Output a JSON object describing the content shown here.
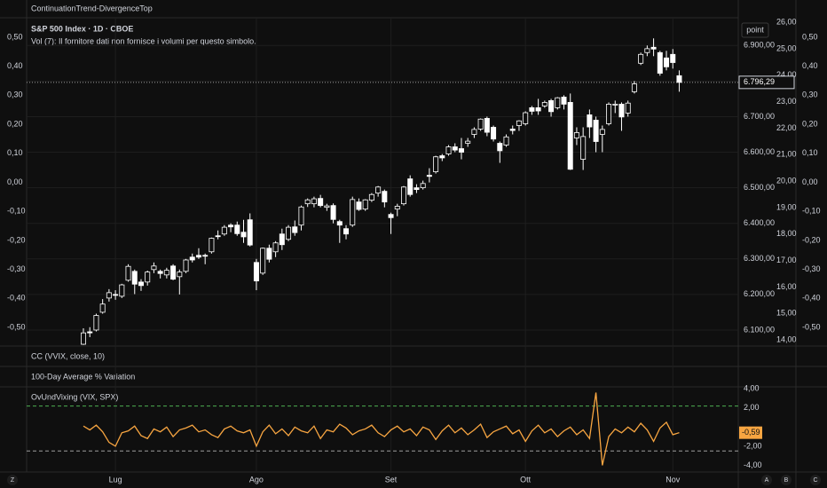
{
  "header": {
    "indicator_title": "ContinuationTrend-DivergenceTop"
  },
  "panes": [
    "CC (VVIX, close, 10)",
    "100-Day Average % Variation"
  ],
  "toolbar": {
    "left": "Z",
    "right": [
      "A",
      "B",
      "C"
    ]
  },
  "chart_data": [
    {
      "type": "candlestick",
      "title": "S&P 500 Index · 1D · CBOE",
      "note": "Vol (7): Il fornitore dati non fornisce i volumi per questo simbolo.",
      "scale_mode": "point",
      "up_color": "#0f0f0f",
      "down_color": "#ffffff",
      "wick_color": "#ffffff",
      "grid": true,
      "candles": [
        [
          6060,
          6105,
          6058,
          6092
        ],
        [
          6095,
          6108,
          6080,
          6092
        ],
        [
          6100,
          6146,
          6096,
          6141
        ],
        [
          6150,
          6187,
          6146,
          6173
        ],
        [
          6190,
          6215,
          6180,
          6205
        ],
        [
          6200,
          6212,
          6185,
          6198
        ],
        [
          6195,
          6230,
          6190,
          6227
        ],
        [
          6240,
          6285,
          6236,
          6279
        ],
        [
          6265,
          6270,
          6201,
          6229
        ],
        [
          6235,
          6243,
          6210,
          6225
        ],
        [
          6235,
          6267,
          6225,
          6263
        ],
        [
          6270,
          6290,
          6260,
          6280
        ],
        [
          6265,
          6270,
          6245,
          6259
        ],
        [
          6255,
          6275,
          6245,
          6268
        ],
        [
          6280,
          6285,
          6240,
          6243
        ],
        [
          6250,
          6270,
          6200,
          6263
        ],
        [
          6265,
          6300,
          6260,
          6297
        ],
        [
          6305,
          6315,
          6290,
          6297
        ],
        [
          6310,
          6330,
          6300,
          6305
        ],
        [
          6310,
          6315,
          6285,
          6309
        ],
        [
          6320,
          6360,
          6315,
          6358
        ],
        [
          6365,
          6380,
          6355,
          6363
        ],
        [
          6370,
          6395,
          6365,
          6389
        ],
        [
          6395,
          6400,
          6375,
          6390
        ],
        [
          6395,
          6405,
          6365,
          6371
        ],
        [
          6375,
          6410,
          6345,
          6362
        ],
        [
          6410,
          6428,
          6335,
          6339
        ],
        [
          6290,
          6300,
          6212,
          6238
        ],
        [
          6260,
          6332,
          6255,
          6330
        ],
        [
          6330,
          6340,
          6290,
          6299
        ],
        [
          6320,
          6350,
          6305,
          6345
        ],
        [
          6370,
          6385,
          6325,
          6340
        ],
        [
          6355,
          6395,
          6350,
          6389
        ],
        [
          6390,
          6408,
          6365,
          6374
        ],
        [
          6395,
          6450,
          6380,
          6446
        ],
        [
          6455,
          6470,
          6446,
          6466
        ],
        [
          6455,
          6475,
          6445,
          6469
        ],
        [
          6470,
          6480,
          6445,
          6450
        ],
        [
          6445,
          6455,
          6435,
          6449
        ],
        [
          6450,
          6456,
          6400,
          6411
        ],
        [
          6405,
          6410,
          6345,
          6395
        ],
        [
          6385,
          6395,
          6355,
          6370
        ],
        [
          6395,
          6475,
          6390,
          6467
        ],
        [
          6460,
          6470,
          6435,
          6439
        ],
        [
          6440,
          6468,
          6435,
          6466
        ],
        [
          6465,
          6485,
          6460,
          6481
        ],
        [
          6485,
          6505,
          6475,
          6502
        ],
        [
          6490,
          6495,
          6445,
          6460
        ],
        [
          6425,
          6430,
          6370,
          6416
        ],
        [
          6440,
          6455,
          6420,
          6448
        ],
        [
          6455,
          6505,
          6450,
          6502
        ],
        [
          6525,
          6535,
          6475,
          6481
        ],
        [
          6500,
          6510,
          6485,
          6495
        ],
        [
          6500,
          6520,
          6495,
          6512
        ],
        [
          6535,
          6555,
          6515,
          6532
        ],
        [
          6545,
          6590,
          6540,
          6587
        ],
        [
          6590,
          6595,
          6575,
          6584
        ],
        [
          6595,
          6620,
          6590,
          6615
        ],
        [
          6615,
          6625,
          6600,
          6606
        ],
        [
          6610,
          6640,
          6580,
          6600
        ],
        [
          6625,
          6640,
          6615,
          6631
        ],
        [
          6650,
          6670,
          6640,
          6664
        ],
        [
          6665,
          6695,
          6660,
          6693
        ],
        [
          6695,
          6700,
          6645,
          6656
        ],
        [
          6670,
          6675,
          6630,
          6637
        ],
        [
          6625,
          6630,
          6570,
          6604
        ],
        [
          6620,
          6650,
          6615,
          6643
        ],
        [
          6665,
          6675,
          6650,
          6661
        ],
        [
          6675,
          6690,
          6660,
          6688
        ],
        [
          6680,
          6715,
          6675,
          6711
        ],
        [
          6725,
          6730,
          6705,
          6715
        ],
        [
          6725,
          6750,
          6705,
          6716
        ],
        [
          6730,
          6745,
          6725,
          6740
        ],
        [
          6745,
          6750,
          6700,
          6714
        ],
        [
          6725,
          6755,
          6720,
          6753
        ],
        [
          6755,
          6760,
          6720,
          6735
        ],
        [
          6740,
          6765,
          6550,
          6552
        ],
        [
          6640,
          6670,
          6620,
          6655
        ],
        [
          6580,
          6670,
          6550,
          6644
        ],
        [
          6705,
          6720,
          6640,
          6671
        ],
        [
          6690,
          6700,
          6600,
          6630
        ],
        [
          6650,
          6675,
          6600,
          6664
        ],
        [
          6680,
          6740,
          6675,
          6735
        ],
        [
          6735,
          6745,
          6710,
          6735
        ],
        [
          6735,
          6740,
          6660,
          6699
        ],
        [
          6710,
          6745,
          6700,
          6738
        ],
        [
          6770,
          6800,
          6765,
          6792
        ],
        [
          6850,
          6880,
          6845,
          6875
        ],
        [
          6880,
          6900,
          6870,
          6891
        ],
        [
          6895,
          6920,
          6870,
          6890
        ],
        [
          6880,
          6885,
          6815,
          6822
        ],
        [
          6865,
          6885,
          6830,
          6840
        ],
        [
          6875,
          6890,
          6835,
          6852
        ],
        [
          6815,
          6830,
          6770,
          6796.29
        ]
      ],
      "last_price": {
        "value": 6796.29,
        "label": "6.796,29"
      },
      "xticks": [
        {
          "value": 5,
          "label": "Lug"
        },
        {
          "value": 27,
          "label": "Ago"
        },
        {
          "value": 48,
          "label": "Set"
        },
        {
          "value": 69,
          "label": "Ott"
        },
        {
          "value": 92,
          "label": "Nov"
        }
      ],
      "ylim": [
        6055,
        6978
      ],
      "yticks": [
        {
          "value": 6100,
          "label": "6.100,00"
        },
        {
          "value": 6200,
          "label": "6.200,00"
        },
        {
          "value": 6300,
          "label": "6.300,00"
        },
        {
          "value": 6400,
          "label": "6.400,00"
        },
        {
          "value": 6500,
          "label": "6.500,00"
        },
        {
          "value": 6600,
          "label": "6.600,00"
        },
        {
          "value": 6700,
          "label": "6.700,00"
        },
        {
          "value": 6800,
          "label": "6.800,00"
        },
        {
          "value": 6900,
          "label": "6.900,00"
        }
      ],
      "y2lim": [
        13.77,
        26.17
      ],
      "y2ticks": [
        {
          "value": 14,
          "label": "14,00"
        },
        {
          "value": 15,
          "label": "15,00"
        },
        {
          "value": 16,
          "label": "16,00"
        },
        {
          "value": 17,
          "label": "17,00"
        },
        {
          "value": 18,
          "label": "18,00"
        },
        {
          "value": 19,
          "label": "19,00"
        },
        {
          "value": 20,
          "label": "20,00"
        },
        {
          "value": 21,
          "label": "21,00"
        },
        {
          "value": 22,
          "label": "22,00"
        },
        {
          "value": 23,
          "label": "23,00"
        },
        {
          "value": 24,
          "label": "24,00"
        },
        {
          "value": 25,
          "label": "25,00"
        },
        {
          "value": 26,
          "label": "26,00"
        }
      ],
      "left_ylim": [
        -0.564,
        0.567
      ],
      "left_yticks": [
        {
          "value": 0.5,
          "label": "0,50"
        },
        {
          "value": 0.4,
          "label": "0,40"
        },
        {
          "value": 0.3,
          "label": "0,30"
        },
        {
          "value": 0.2,
          "label": "0,20"
        },
        {
          "value": 0.1,
          "label": "0,10"
        },
        {
          "value": 0,
          "label": "0,00"
        },
        {
          "value": -0.1,
          "label": "-0,10"
        },
        {
          "value": -0.2,
          "label": "-0,20"
        },
        {
          "value": -0.3,
          "label": "-0,30"
        },
        {
          "value": -0.4,
          "label": "-0,40"
        },
        {
          "value": -0.5,
          "label": "-0,50"
        }
      ]
    },
    {
      "type": "line",
      "title": "OvUndVixing (VIX, SPX)",
      "color": "#f7a541",
      "values": [
        0.1,
        -0.3,
        0.2,
        -0.5,
        -1.6,
        -2.0,
        -0.6,
        -0.4,
        0.1,
        -0.9,
        -1.2,
        -0.2,
        -0.5,
        0.0,
        -1.0,
        -0.3,
        -0.1,
        0.2,
        -0.5,
        -0.3,
        -0.8,
        -1.1,
        -0.2,
        0.1,
        -0.4,
        -0.6,
        -0.3,
        -2.0,
        -0.5,
        0.2,
        -0.7,
        -0.2,
        -0.9,
        0.0,
        -0.4,
        -0.6,
        0.1,
        -1.2,
        -0.3,
        -0.5,
        0.3,
        -0.1,
        -0.8,
        -0.4,
        -0.2,
        0.2,
        -0.6,
        -1.0,
        -0.3,
        0.1,
        -0.5,
        -0.2,
        -0.9,
        0.0,
        -0.3,
        -1.3,
        -0.4,
        0.2,
        -0.6,
        -0.1,
        -0.8,
        -0.3,
        0.3,
        -1.1,
        -0.5,
        -0.2,
        0.1,
        -0.7,
        -0.3,
        -1.5,
        -0.4,
        0.2,
        -0.6,
        -0.2,
        -1.0,
        -0.4,
        0.0,
        -0.8,
        -0.3,
        -1.2,
        3.6,
        -4.0,
        -1.0,
        -0.2,
        -0.6,
        0.0,
        -0.5,
        0.4,
        -0.3,
        -1.5,
        -0.1,
        0.5,
        -0.8,
        -0.59
      ],
      "last_label": "-0,59",
      "levels": [
        {
          "value": 2.2,
          "color": "#4caf50"
        },
        {
          "value": -2.5,
          "color": "#9e9e9e"
        }
      ],
      "ylim": [
        -4.7,
        4.2
      ],
      "yticks": [
        {
          "value": 4,
          "label": "4,00"
        },
        {
          "value": 2,
          "label": "2,00"
        },
        {
          "value": -2,
          "label": "-2,00"
        },
        {
          "value": -4,
          "label": "-4,00"
        }
      ]
    }
  ]
}
